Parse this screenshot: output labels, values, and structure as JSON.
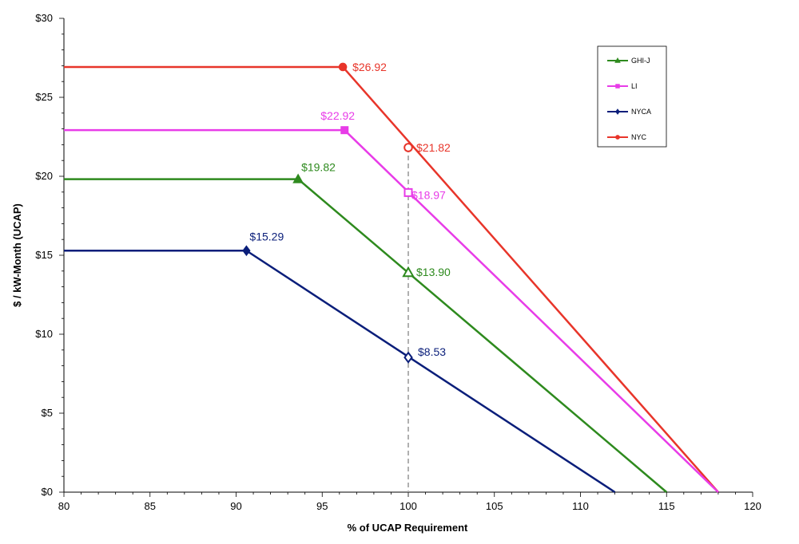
{
  "chart_data": {
    "type": "line",
    "title": "",
    "xlabel": "% of UCAP Requirement",
    "ylabel": "$ / kW-Month (UCAP)",
    "xlim": [
      80,
      120
    ],
    "ylim": [
      0,
      30
    ],
    "xticks": [
      80,
      85,
      90,
      95,
      100,
      105,
      110,
      115,
      120
    ],
    "yticks": [
      0,
      5,
      10,
      15,
      20,
      25,
      30
    ],
    "ytick_labels": [
      "$0",
      "$5",
      "$10",
      "$15",
      "$20",
      "$25",
      "$30"
    ],
    "xtick_labels": [
      "80",
      "85",
      "90",
      "95",
      "100",
      "105",
      "110",
      "115",
      "120"
    ],
    "reference_line_x": 100,
    "legend": [
      "GHI-J",
      "LI",
      "NYCA",
      "NYC"
    ],
    "series": [
      {
        "name": "NYC",
        "color": "#e8352a",
        "marker": "circle",
        "points": [
          [
            80,
            26.92
          ],
          [
            96.2,
            26.92
          ],
          [
            118,
            0
          ]
        ],
        "labeled_points": [
          {
            "x": 96.2,
            "y": 26.92,
            "label": "$26.92"
          },
          {
            "x": 100,
            "y": 21.82,
            "label": "$21.82"
          }
        ]
      },
      {
        "name": "LI",
        "color": "#e83ce8",
        "marker": "square",
        "points": [
          [
            80,
            22.92
          ],
          [
            96.3,
            22.92
          ],
          [
            118,
            0
          ]
        ],
        "labeled_points": [
          {
            "x": 96.3,
            "y": 22.92,
            "label": "$22.92"
          },
          {
            "x": 100,
            "y": 18.97,
            "label": "$18.97"
          }
        ]
      },
      {
        "name": "GHI-J",
        "color": "#2e8a1e",
        "marker": "triangle",
        "points": [
          [
            80,
            19.82
          ],
          [
            93.6,
            19.82
          ],
          [
            115,
            0
          ]
        ],
        "labeled_points": [
          {
            "x": 93.6,
            "y": 19.82,
            "label": "$19.82"
          },
          {
            "x": 100,
            "y": 13.9,
            "label": "$13.90"
          }
        ]
      },
      {
        "name": "NYCA",
        "color": "#0a1e7a",
        "marker": "diamond",
        "points": [
          [
            80,
            15.29
          ],
          [
            90.6,
            15.29
          ],
          [
            112,
            0
          ]
        ],
        "labeled_points": [
          {
            "x": 90.6,
            "y": 15.29,
            "label": "$15.29"
          },
          {
            "x": 100,
            "y": 8.53,
            "label": "$8.53"
          }
        ]
      }
    ]
  }
}
